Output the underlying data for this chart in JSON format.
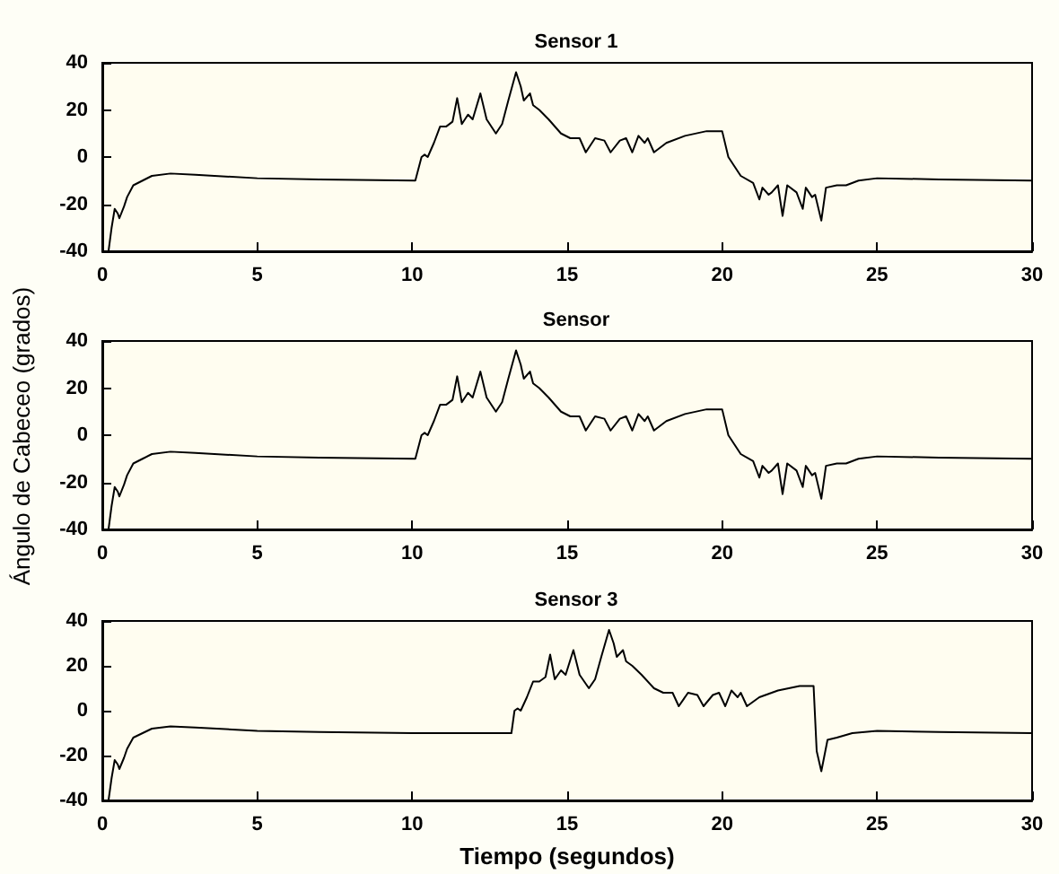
{
  "chart_data": [
    {
      "type": "line",
      "title": "Sensor 1",
      "marker": "none",
      "color": "#000000",
      "xlim": [
        0,
        30
      ],
      "xticks": [
        0,
        5,
        10,
        15,
        20,
        25,
        30
      ],
      "ylim": [
        -40,
        40
      ],
      "yticks": [
        -40,
        -20,
        0,
        20,
        40
      ],
      "x": [
        0.2,
        0.3,
        0.4,
        0.5,
        0.55,
        0.7,
        0.8,
        1.0,
        1.3,
        1.6,
        2.2,
        3,
        5,
        7,
        10.1,
        10.3,
        10.4,
        10.5,
        10.7,
        10.9,
        11.1,
        11.3,
        11.45,
        11.6,
        11.8,
        11.95,
        12.2,
        12.4,
        12.6,
        12.7,
        12.9,
        13.1,
        13.35,
        13.5,
        13.6,
        13.8,
        13.9,
        14.1,
        14.4,
        14.8,
        15.1,
        15.4,
        15.6,
        15.9,
        16.2,
        16.4,
        16.7,
        16.9,
        17.1,
        17.3,
        17.5,
        17.6,
        17.8,
        18.2,
        18.8,
        19.5,
        20.0,
        20.2,
        20.4,
        20.6,
        21.0,
        21.2,
        21.3,
        21.5,
        21.6,
        21.8,
        21.95,
        22.1,
        22.4,
        22.6,
        22.7,
        22.9,
        23.0,
        23.2,
        23.35,
        23.7,
        24.0,
        24.4,
        25,
        27,
        30
      ],
      "values": [
        -40,
        -30,
        -22,
        -24,
        -26,
        -21,
        -17,
        -12,
        -10,
        -8,
        -7,
        -7.5,
        -9,
        -9.5,
        -10,
        0,
        1,
        0,
        6,
        13,
        13,
        15,
        25,
        14,
        18,
        16,
        27,
        16,
        12,
        10,
        14,
        24,
        36,
        30,
        24,
        27,
        22,
        20,
        16,
        10,
        8,
        8,
        2,
        8,
        7,
        2,
        7,
        8,
        2,
        9,
        6,
        8,
        2,
        6,
        9,
        11,
        11,
        0,
        -4,
        -8,
        -11,
        -18,
        -13,
        -16,
        -15,
        -12,
        -25,
        -12,
        -15,
        -22,
        -13,
        -17,
        -16,
        -27,
        -13,
        -12,
        -12,
        -10,
        -9,
        -9.5,
        -10
      ]
    },
    {
      "type": "line",
      "title": "Sensor",
      "ylabel": "Ángulo de Cabeceo (grados)",
      "marker": "none",
      "color": "#000000",
      "xlim": [
        0,
        30
      ],
      "xticks": [
        0,
        5,
        10,
        15,
        20,
        25,
        30
      ],
      "ylim": [
        -40,
        40
      ],
      "yticks": [
        -40,
        -20,
        0,
        20,
        40
      ],
      "x": [
        0.2,
        0.3,
        0.4,
        0.5,
        0.55,
        0.7,
        0.8,
        1.0,
        1.3,
        1.6,
        2.2,
        3,
        5,
        7,
        10.1,
        10.3,
        10.4,
        10.5,
        10.7,
        10.9,
        11.1,
        11.3,
        11.45,
        11.6,
        11.8,
        11.95,
        12.2,
        12.4,
        12.6,
        12.7,
        12.9,
        13.1,
        13.35,
        13.5,
        13.6,
        13.8,
        13.9,
        14.1,
        14.4,
        14.8,
        15.1,
        15.4,
        15.6,
        15.9,
        16.2,
        16.4,
        16.7,
        16.9,
        17.1,
        17.3,
        17.5,
        17.6,
        17.8,
        18.2,
        18.8,
        19.5,
        20.0,
        20.2,
        20.4,
        20.6,
        21.0,
        21.2,
        21.3,
        21.5,
        21.6,
        21.8,
        21.95,
        22.1,
        22.4,
        22.6,
        22.7,
        22.9,
        23.0,
        23.2,
        23.35,
        23.7,
        24.0,
        24.4,
        25,
        27,
        30
      ],
      "values": [
        -40,
        -30,
        -22,
        -24,
        -26,
        -21,
        -17,
        -12,
        -10,
        -8,
        -7,
        -7.5,
        -9,
        -9.5,
        -10,
        0,
        1,
        0,
        6,
        13,
        13,
        15,
        25,
        14,
        18,
        16,
        27,
        16,
        12,
        10,
        14,
        24,
        36,
        30,
        24,
        27,
        22,
        20,
        16,
        10,
        8,
        8,
        2,
        8,
        7,
        2,
        7,
        8,
        2,
        9,
        6,
        8,
        2,
        6,
        9,
        11,
        11,
        0,
        -4,
        -8,
        -11,
        -18,
        -13,
        -16,
        -15,
        -12,
        -25,
        -12,
        -15,
        -22,
        -13,
        -17,
        -16,
        -27,
        -13,
        -12,
        -12,
        -10,
        -9,
        -9.5,
        -10
      ]
    },
    {
      "type": "line",
      "title": "Sensor 3",
      "xlabel": "Tiempo (segundos)",
      "marker": "none",
      "color": "#000000",
      "xlim": [
        0,
        30
      ],
      "xticks": [
        0,
        5,
        10,
        15,
        20,
        25,
        30
      ],
      "ylim": [
        -40,
        40
      ],
      "yticks": [
        -40,
        -20,
        0,
        20,
        40
      ],
      "x": [
        0.2,
        0.3,
        0.4,
        0.5,
        0.55,
        0.7,
        0.8,
        1.0,
        1.3,
        1.6,
        2.2,
        3,
        5,
        7,
        10,
        13.2,
        13.3,
        13.4,
        13.5,
        13.7,
        13.9,
        14.1,
        14.3,
        14.45,
        14.6,
        14.8,
        14.95,
        15.2,
        15.4,
        15.6,
        15.7,
        15.9,
        16.1,
        16.35,
        16.5,
        16.6,
        16.8,
        16.9,
        17.1,
        17.4,
        17.8,
        18.1,
        18.4,
        18.6,
        18.9,
        19.2,
        19.4,
        19.7,
        19.9,
        20.1,
        20.3,
        20.5,
        20.6,
        20.8,
        21.2,
        21.8,
        22.5,
        22.95,
        23.05,
        23.2,
        23.4,
        23.7,
        24.2,
        25,
        27,
        30
      ],
      "values": [
        -40,
        -30,
        -22,
        -24,
        -26,
        -21,
        -17,
        -12,
        -10,
        -8,
        -7,
        -7.5,
        -9,
        -9.5,
        -10,
        -10,
        0,
        1,
        0,
        6,
        13,
        13,
        15,
        25,
        14,
        18,
        16,
        27,
        16,
        12,
        10,
        14,
        24,
        36,
        30,
        24,
        27,
        22,
        20,
        16,
        10,
        8,
        8,
        2,
        8,
        7,
        2,
        7,
        8,
        2,
        9,
        6,
        8,
        2,
        6,
        9,
        11,
        11,
        -18,
        -27,
        -13,
        -12,
        -10,
        -9,
        -9.5,
        -10
      ]
    }
  ]
}
